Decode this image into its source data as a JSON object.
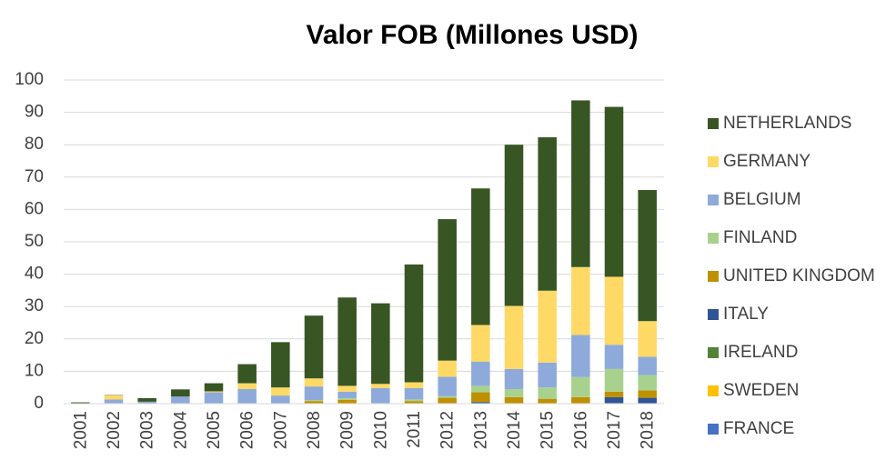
{
  "chart_data": {
    "type": "stacked_bar",
    "title": "Valor FOB (Millones USD)",
    "categories": [
      "2001",
      "2002",
      "2003",
      "2004",
      "2005",
      "2006",
      "2007",
      "2008",
      "2009",
      "2010",
      "2011",
      "2012",
      "2013",
      "2014",
      "2015",
      "2016",
      "2017",
      "2018"
    ],
    "series": [
      {
        "name": "FRANCE",
        "color": "#4472c4",
        "values": [
          0,
          0,
          0,
          0,
          0,
          0,
          0,
          0,
          0,
          0,
          0,
          0,
          0,
          0,
          0,
          0,
          0,
          0
        ]
      },
      {
        "name": "SWEDEN",
        "color": "#ffc000",
        "values": [
          0,
          0,
          0,
          0,
          0,
          0,
          0,
          0,
          0,
          0,
          0,
          0,
          0,
          0,
          0,
          0,
          0,
          0
        ]
      },
      {
        "name": "IRELAND",
        "color": "#548235",
        "values": [
          0,
          0,
          0,
          0,
          0,
          0,
          0,
          0,
          0,
          0,
          0,
          0,
          0,
          0,
          0,
          0,
          0,
          0
        ]
      },
      {
        "name": "ITALY",
        "color": "#2f5597",
        "values": [
          0,
          0,
          0,
          0,
          0,
          0,
          0,
          0,
          0,
          0,
          0,
          0,
          0.5,
          0,
          0,
          0,
          2,
          1.8
        ]
      },
      {
        "name": "UNITED KINGDOM",
        "color": "#bf9000",
        "values": [
          0.1,
          0,
          0,
          0,
          0,
          0,
          0,
          0.8,
          1.2,
          0,
          0.8,
          1.8,
          3,
          2,
          1.5,
          2,
          1.7,
          2.3
        ]
      },
      {
        "name": "FINLAND",
        "color": "#a9d18e",
        "values": [
          0,
          0,
          0,
          0,
          0,
          0,
          0,
          0.3,
          0.5,
          0,
          0.5,
          0.5,
          2,
          2.5,
          3.5,
          6.2,
          7,
          4.7
        ]
      },
      {
        "name": "BELGIUM",
        "color": "#8eaadb",
        "values": [
          0,
          1.3,
          0.6,
          2.2,
          3.5,
          4.5,
          2.5,
          4.2,
          2,
          4.8,
          3.5,
          6,
          7.5,
          6.2,
          7.7,
          13,
          7.5,
          5.7
        ]
      },
      {
        "name": "GERMANY",
        "color": "#ffd966",
        "values": [
          0,
          1.3,
          0,
          0,
          0.3,
          1.8,
          2.5,
          2.5,
          1.8,
          1.3,
          1.8,
          5,
          11.3,
          19.5,
          22.2,
          21,
          21,
          11
        ]
      },
      {
        "name": "NETHERLANDS",
        "color": "#375623",
        "values": [
          0.3,
          0.1,
          1.1,
          2.2,
          2.5,
          5.9,
          14,
          19.4,
          27.3,
          24.9,
          36.4,
          43.7,
          42.2,
          49.8,
          47.4,
          51.5,
          52.5,
          40.5
        ]
      }
    ],
    "ylim": [
      0,
      100
    ],
    "yticks": [
      0,
      10,
      20,
      30,
      40,
      50,
      60,
      70,
      80,
      90,
      100
    ],
    "grid": true,
    "legend": "right"
  }
}
